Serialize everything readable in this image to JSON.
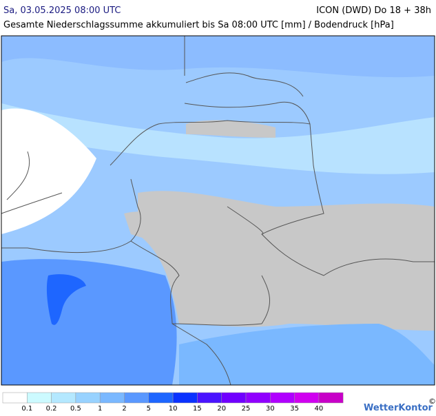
{
  "header": {
    "title": "Sa, 03.05.2025 08:00 UTC",
    "model": "ICON (DWD) Do 18 + 38h",
    "subtitle": "Gesamte Niederschlagssumme akkumuliert bis Sa 08:00 UTC [mm] / Bodendruck [hPa]"
  },
  "legend": {
    "colors": [
      "#ffffff",
      "#ccfaff",
      "#b4e8ff",
      "#98d2ff",
      "#7ab8ff",
      "#5a98ff",
      "#1e66ff",
      "#0a32ff",
      "#4a14ff",
      "#7000ff",
      "#9000ff",
      "#b000ff",
      "#d000f0",
      "#c800c8"
    ],
    "labels": [
      "0.1",
      "0.2",
      "0.5",
      "1",
      "2",
      "5",
      "10",
      "15",
      "20",
      "25",
      "30",
      "35",
      "40"
    ]
  },
  "brand": "WetterKontor",
  "copyright": "©"
}
